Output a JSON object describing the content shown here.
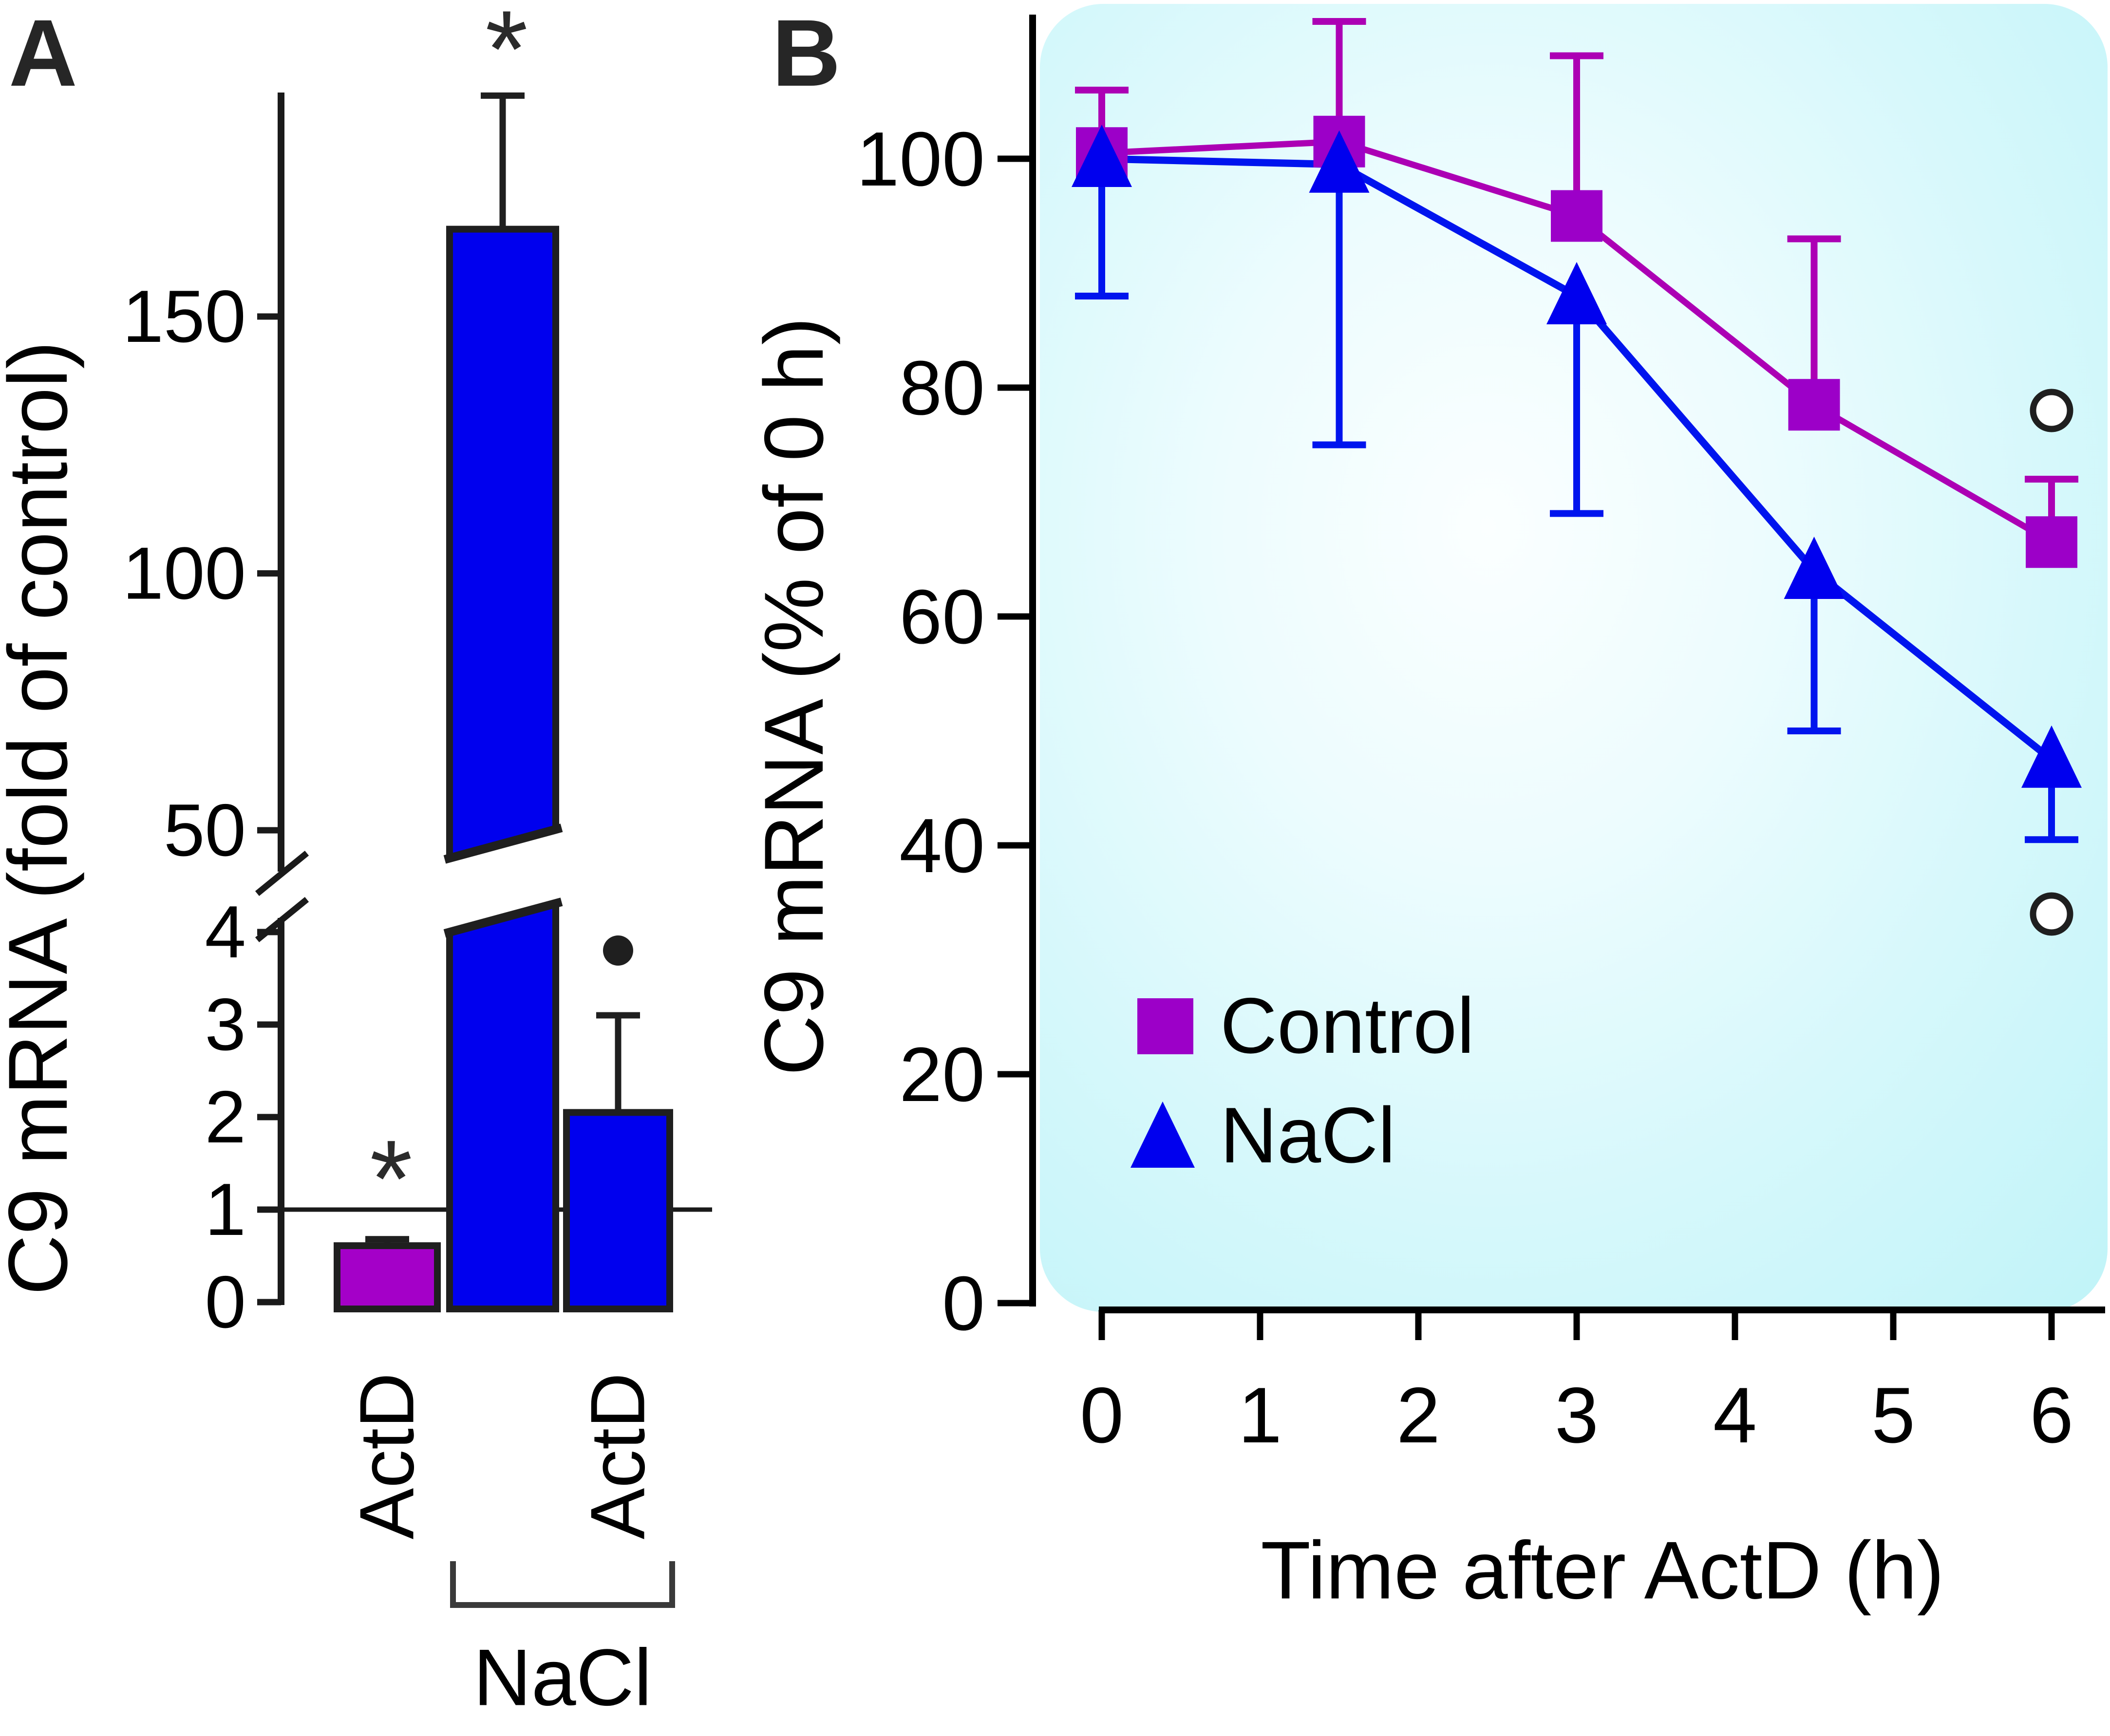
{
  "panel_labels": {
    "a": "A",
    "b": "B"
  },
  "chart_data": [
    {
      "type": "bar",
      "panel": "A",
      "ylabel": "C9 mRNA (fold of control)",
      "categories": [
        "ActD",
        "NaCl",
        "NaCl + ActD"
      ],
      "values": [
        0.61,
        167,
        2.05
      ],
      "error_up_to": [
        0.68,
        193,
        3.1
      ],
      "significance": [
        "*",
        "*",
        "dot"
      ],
      "dot_annotation_value": 3.8,
      "bar_colors": [
        "#A400C8",
        "#0000EE",
        "#0000EE"
      ],
      "reference_line": 1,
      "broken_axis": {
        "lower_ticks": [
          0,
          1,
          2,
          3,
          4
        ],
        "upper_ticks": [
          50,
          100,
          150
        ],
        "broken_bar_index": 1
      },
      "x_group_labels": {
        "bar1": "ActD",
        "bar3": "ActD",
        "bracket": "NaCl"
      },
      "grid": false
    },
    {
      "type": "line",
      "panel": "B",
      "xlabel": "Time after ActD (h)",
      "ylabel": "C9 mRNA (% of 0 h)",
      "x": [
        0,
        1.5,
        3,
        4.5,
        6
      ],
      "xticks": [
        0,
        1,
        2,
        3,
        4,
        5,
        6
      ],
      "yticks": [
        0,
        20,
        40,
        60,
        80,
        100
      ],
      "xlim": [
        0,
        6
      ],
      "ylim": [
        0,
        113
      ],
      "series": [
        {
          "name": "Control",
          "marker": "square",
          "marker_color": "#9C00C8",
          "line_color": "#AC00B4",
          "values": [
            100.5,
            101.5,
            95,
            78.5,
            66.5
          ],
          "error_up_to": [
            106,
            112,
            109,
            93,
            72
          ]
        },
        {
          "name": "NaCl",
          "marker": "triangle",
          "marker_color": "#0000EE",
          "line_color": "#0014EE",
          "values": [
            100,
            99.5,
            88,
            64,
            47.5
          ],
          "error_down_to": [
            88,
            75,
            69,
            50,
            40.5
          ]
        }
      ],
      "annotations": {
        "open_circles": [
          {
            "x": 6,
            "value": 78
          },
          {
            "x": 6,
            "value": 34
          }
        ]
      },
      "legend": {
        "position": "lower-left",
        "entries": [
          "Control",
          "NaCl"
        ]
      },
      "background": "cyan-gradient",
      "background_colors": {
        "edge": "#BFF3F8",
        "center": "#FBFFFF"
      },
      "grid": false
    }
  ],
  "colors": {
    "purple_bar": "#A400C8",
    "purple_marker": "#9C00C8",
    "purple_line": "#AC00B4",
    "blue": "#0000EE",
    "outline": "#1F1F1F",
    "text": "#000000"
  }
}
